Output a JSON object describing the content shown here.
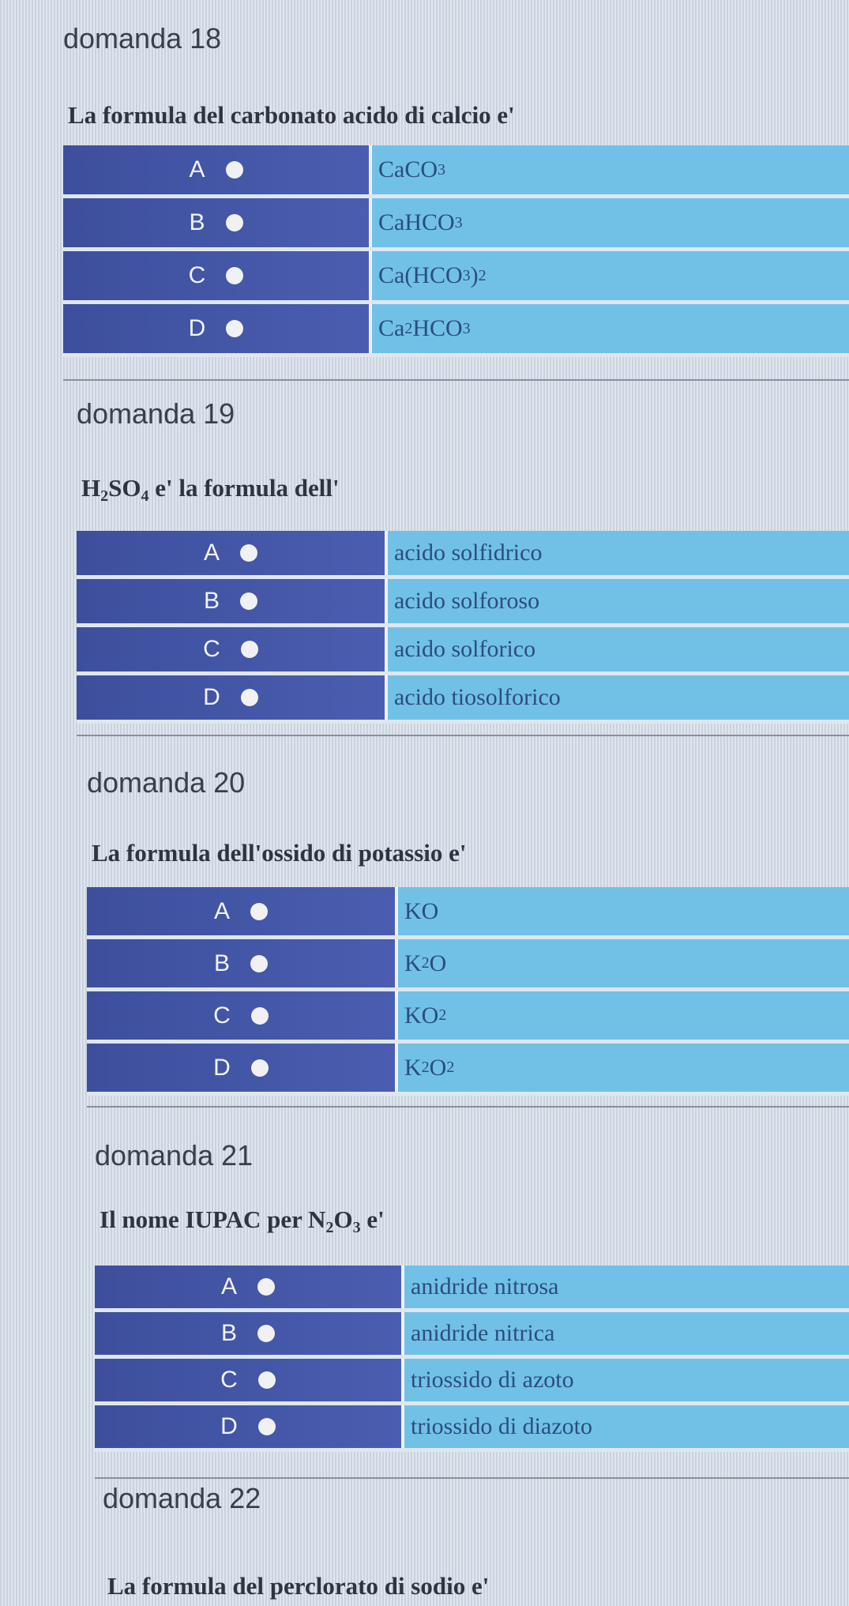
{
  "colors": {
    "option_letter_bg": "#4253a6",
    "option_text_bg": "#71c1e7",
    "background": "#d6dee8"
  },
  "questions": [
    {
      "title": "domanda 18",
      "text": [
        {
          "t": "La formula del carbonato acido di calcio e'"
        }
      ],
      "options": [
        {
          "letter": "A",
          "answer": [
            {
              "t": "CaCO"
            },
            {
              "sub": "3"
            }
          ]
        },
        {
          "letter": "B",
          "answer": [
            {
              "t": "CaHCO"
            },
            {
              "sub": "3"
            }
          ]
        },
        {
          "letter": "C",
          "answer": [
            {
              "t": "Ca(HCO"
            },
            {
              "sub": "3"
            },
            {
              "t": ")"
            },
            {
              "sub": "2"
            }
          ]
        },
        {
          "letter": "D",
          "answer": [
            {
              "t": "Ca"
            },
            {
              "sub": "2"
            },
            {
              "t": "HCO"
            },
            {
              "sub": "3"
            }
          ]
        }
      ]
    },
    {
      "title": "domanda 19",
      "text": [
        {
          "t": "H"
        },
        {
          "sub": "2"
        },
        {
          "t": "SO"
        },
        {
          "sub": "4"
        },
        {
          "t": " e' la formula dell'"
        }
      ],
      "options": [
        {
          "letter": "A",
          "answer": [
            {
              "t": "acido solfidrico"
            }
          ]
        },
        {
          "letter": "B",
          "answer": [
            {
              "t": "acido solforoso"
            }
          ]
        },
        {
          "letter": "C",
          "answer": [
            {
              "t": "acido solforico"
            }
          ]
        },
        {
          "letter": "D",
          "answer": [
            {
              "t": "acido tiosolforico"
            }
          ]
        }
      ]
    },
    {
      "title": "domanda 20",
      "text": [
        {
          "t": "La formula dell'ossido di potassio e'"
        }
      ],
      "options": [
        {
          "letter": "A",
          "answer": [
            {
              "t": "KO"
            }
          ]
        },
        {
          "letter": "B",
          "answer": [
            {
              "t": "K"
            },
            {
              "sub": "2"
            },
            {
              "t": "O"
            }
          ]
        },
        {
          "letter": "C",
          "answer": [
            {
              "t": "KO"
            },
            {
              "sub": "2"
            }
          ]
        },
        {
          "letter": "D",
          "answer": [
            {
              "t": "K"
            },
            {
              "sub": "2"
            },
            {
              "t": "O"
            },
            {
              "sub": "2"
            }
          ]
        }
      ]
    },
    {
      "title": "domanda 21",
      "text": [
        {
          "t": "Il nome IUPAC per N"
        },
        {
          "sub": "2"
        },
        {
          "t": "O"
        },
        {
          "sub": "3"
        },
        {
          "t": " e'"
        }
      ],
      "options": [
        {
          "letter": "A",
          "answer": [
            {
              "t": "anidride nitrosa"
            }
          ]
        },
        {
          "letter": "B",
          "answer": [
            {
              "t": "anidride nitrica"
            }
          ]
        },
        {
          "letter": "C",
          "answer": [
            {
              "t": "triossido di azoto"
            }
          ]
        },
        {
          "letter": "D",
          "answer": [
            {
              "t": "triossido di diazoto"
            }
          ]
        }
      ]
    },
    {
      "title": "domanda 22",
      "text": [
        {
          "t": "La formula del perclorato di sodio e'"
        }
      ],
      "options": []
    }
  ]
}
